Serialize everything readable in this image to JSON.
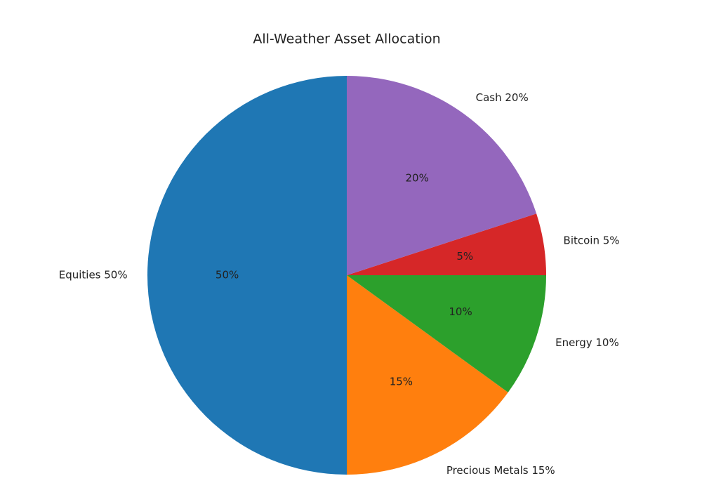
{
  "chart_data": {
    "type": "pie",
    "title": "All-Weather Asset Allocation",
    "labels": [
      "Equities 50%",
      "Precious Metals 15%",
      "Energy 10%",
      "Bitcoin 5%",
      "Cash 20%"
    ],
    "values": [
      50,
      15,
      10,
      5,
      20
    ],
    "value_labels": [
      "50%",
      "15%",
      "10%",
      "5%",
      "20%"
    ],
    "colors": [
      "#1f77b4",
      "#ff7f0e",
      "#2ca02c",
      "#d62728",
      "#9467bd"
    ]
  }
}
